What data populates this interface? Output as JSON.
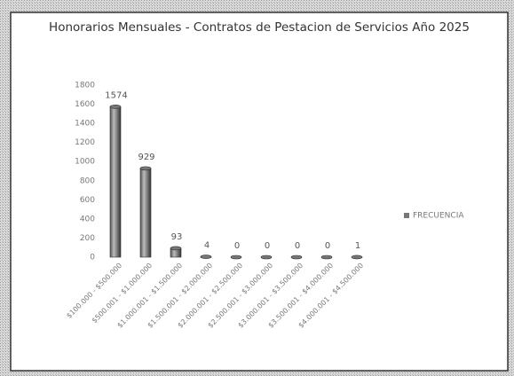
{
  "chart_data": {
    "type": "bar",
    "title": "Honorarios Mensuales - Contratos de Pestacion de Servicios Año 2025",
    "categories": [
      "$100.000 - $500.000",
      "$500.001 - $1.000.000",
      "$1.000.001 - $1.500.000",
      "$1.500.001 - $2.000.000",
      "$2.000.001 - $2.500.000",
      "$2.500.001 - $3.000.000",
      "$3.000.001 - $3.500.000",
      "$3.500.001 - $4.000.000",
      "$4.000.001 - $4.500.000"
    ],
    "series": [
      {
        "name": "FRECUENCIA",
        "color": "#777777",
        "values": [
          1574,
          929,
          93,
          4,
          0,
          0,
          0,
          0,
          1
        ]
      }
    ],
    "ylim": [
      0,
      1800
    ],
    "yticks": [
      0,
      200,
      400,
      600,
      800,
      1000,
      1200,
      1400,
      1600,
      1800
    ],
    "grid": false,
    "legend": "right"
  }
}
